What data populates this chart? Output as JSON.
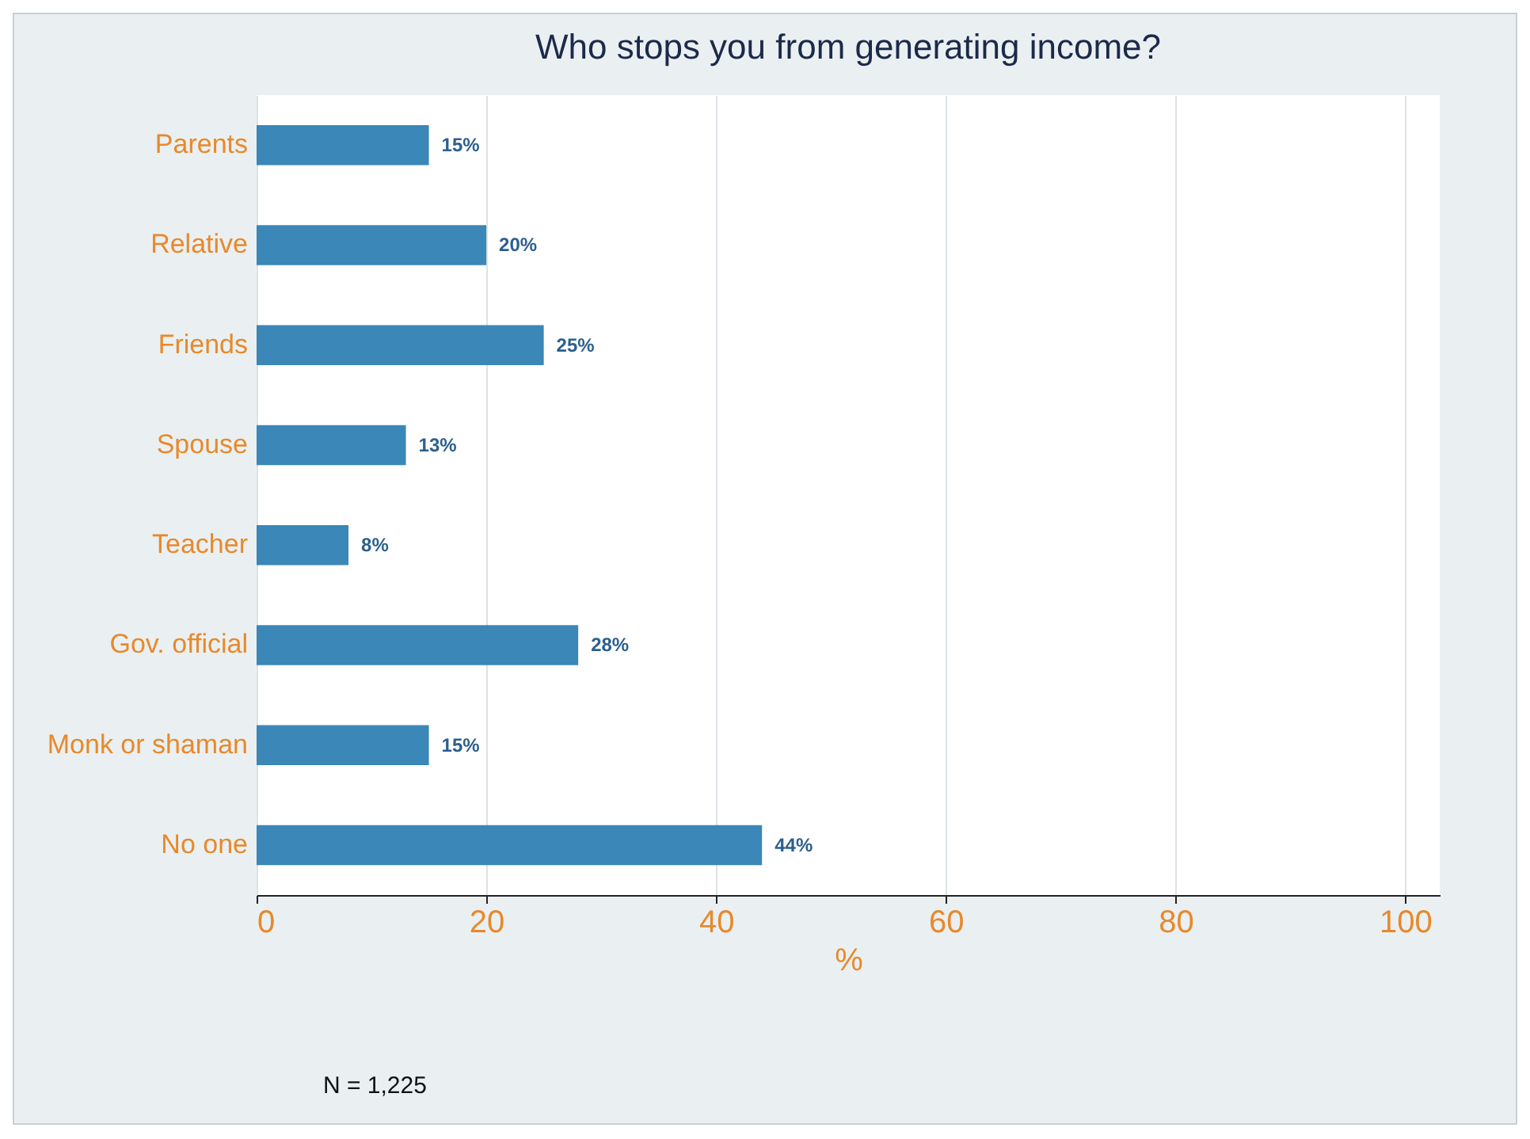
{
  "chart_data": {
    "type": "bar",
    "orientation": "horizontal",
    "title": "Who stops you from generating income?",
    "categories": [
      "Parents",
      "Relative",
      "Friends",
      "Spouse",
      "Teacher",
      "Gov. official",
      "Monk or shaman",
      "No one"
    ],
    "values": [
      15,
      20,
      25,
      13,
      8,
      28,
      15,
      44
    ],
    "value_labels": [
      "15%",
      "20%",
      "25%",
      "13%",
      "8%",
      "28%",
      "15%",
      "44%"
    ],
    "color": "#3a87b8",
    "xlabel": "%",
    "xlim": [
      0,
      103
    ],
    "xticks": [
      0,
      20,
      40,
      60,
      80,
      100
    ],
    "grid": "x",
    "annotations": [
      "N = 1,225"
    ]
  }
}
